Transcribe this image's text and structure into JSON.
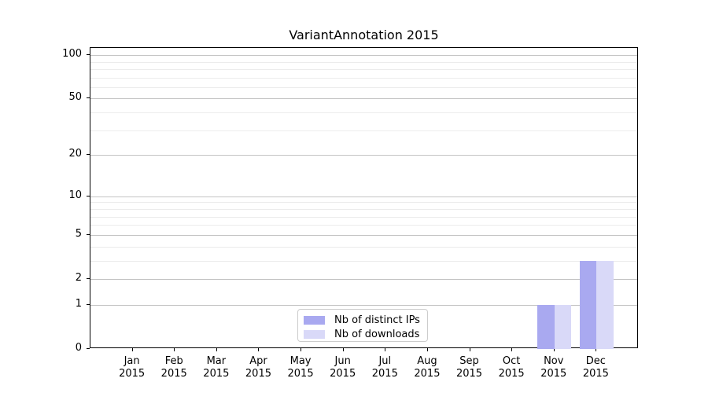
{
  "chart_data": {
    "type": "bar",
    "title": "VariantAnnotation 2015",
    "categories": [
      "Jan",
      "Feb",
      "Mar",
      "Apr",
      "May",
      "Jun",
      "Jul",
      "Aug",
      "Sep",
      "Oct",
      "Nov",
      "Dec"
    ],
    "year_label": "2015",
    "series": [
      {
        "name": "Nb of distinct IPs",
        "color": "#a9a9f0",
        "values": [
          0,
          0,
          0,
          0,
          0,
          0,
          0,
          0,
          0,
          0,
          1,
          3
        ]
      },
      {
        "name": "Nb of downloads",
        "color": "#d9d9f8",
        "values": [
          0,
          0,
          0,
          0,
          0,
          0,
          0,
          0,
          0,
          0,
          1,
          3
        ]
      }
    ],
    "yscale": "log1p",
    "ylim": [
      0,
      112
    ],
    "yticks": [
      0,
      1,
      2,
      5,
      10,
      20,
      50,
      100
    ],
    "minor_yticks": [
      3,
      4,
      6,
      7,
      8,
      9,
      30,
      40,
      60,
      70,
      80,
      90
    ],
    "grid": true,
    "legend_position": "bottom-center"
  },
  "colors": {
    "background": "#ffffff",
    "spine": "#000000",
    "grid_major": "#c4c4c4",
    "grid_minor": "#ececec",
    "text": "#000000"
  }
}
